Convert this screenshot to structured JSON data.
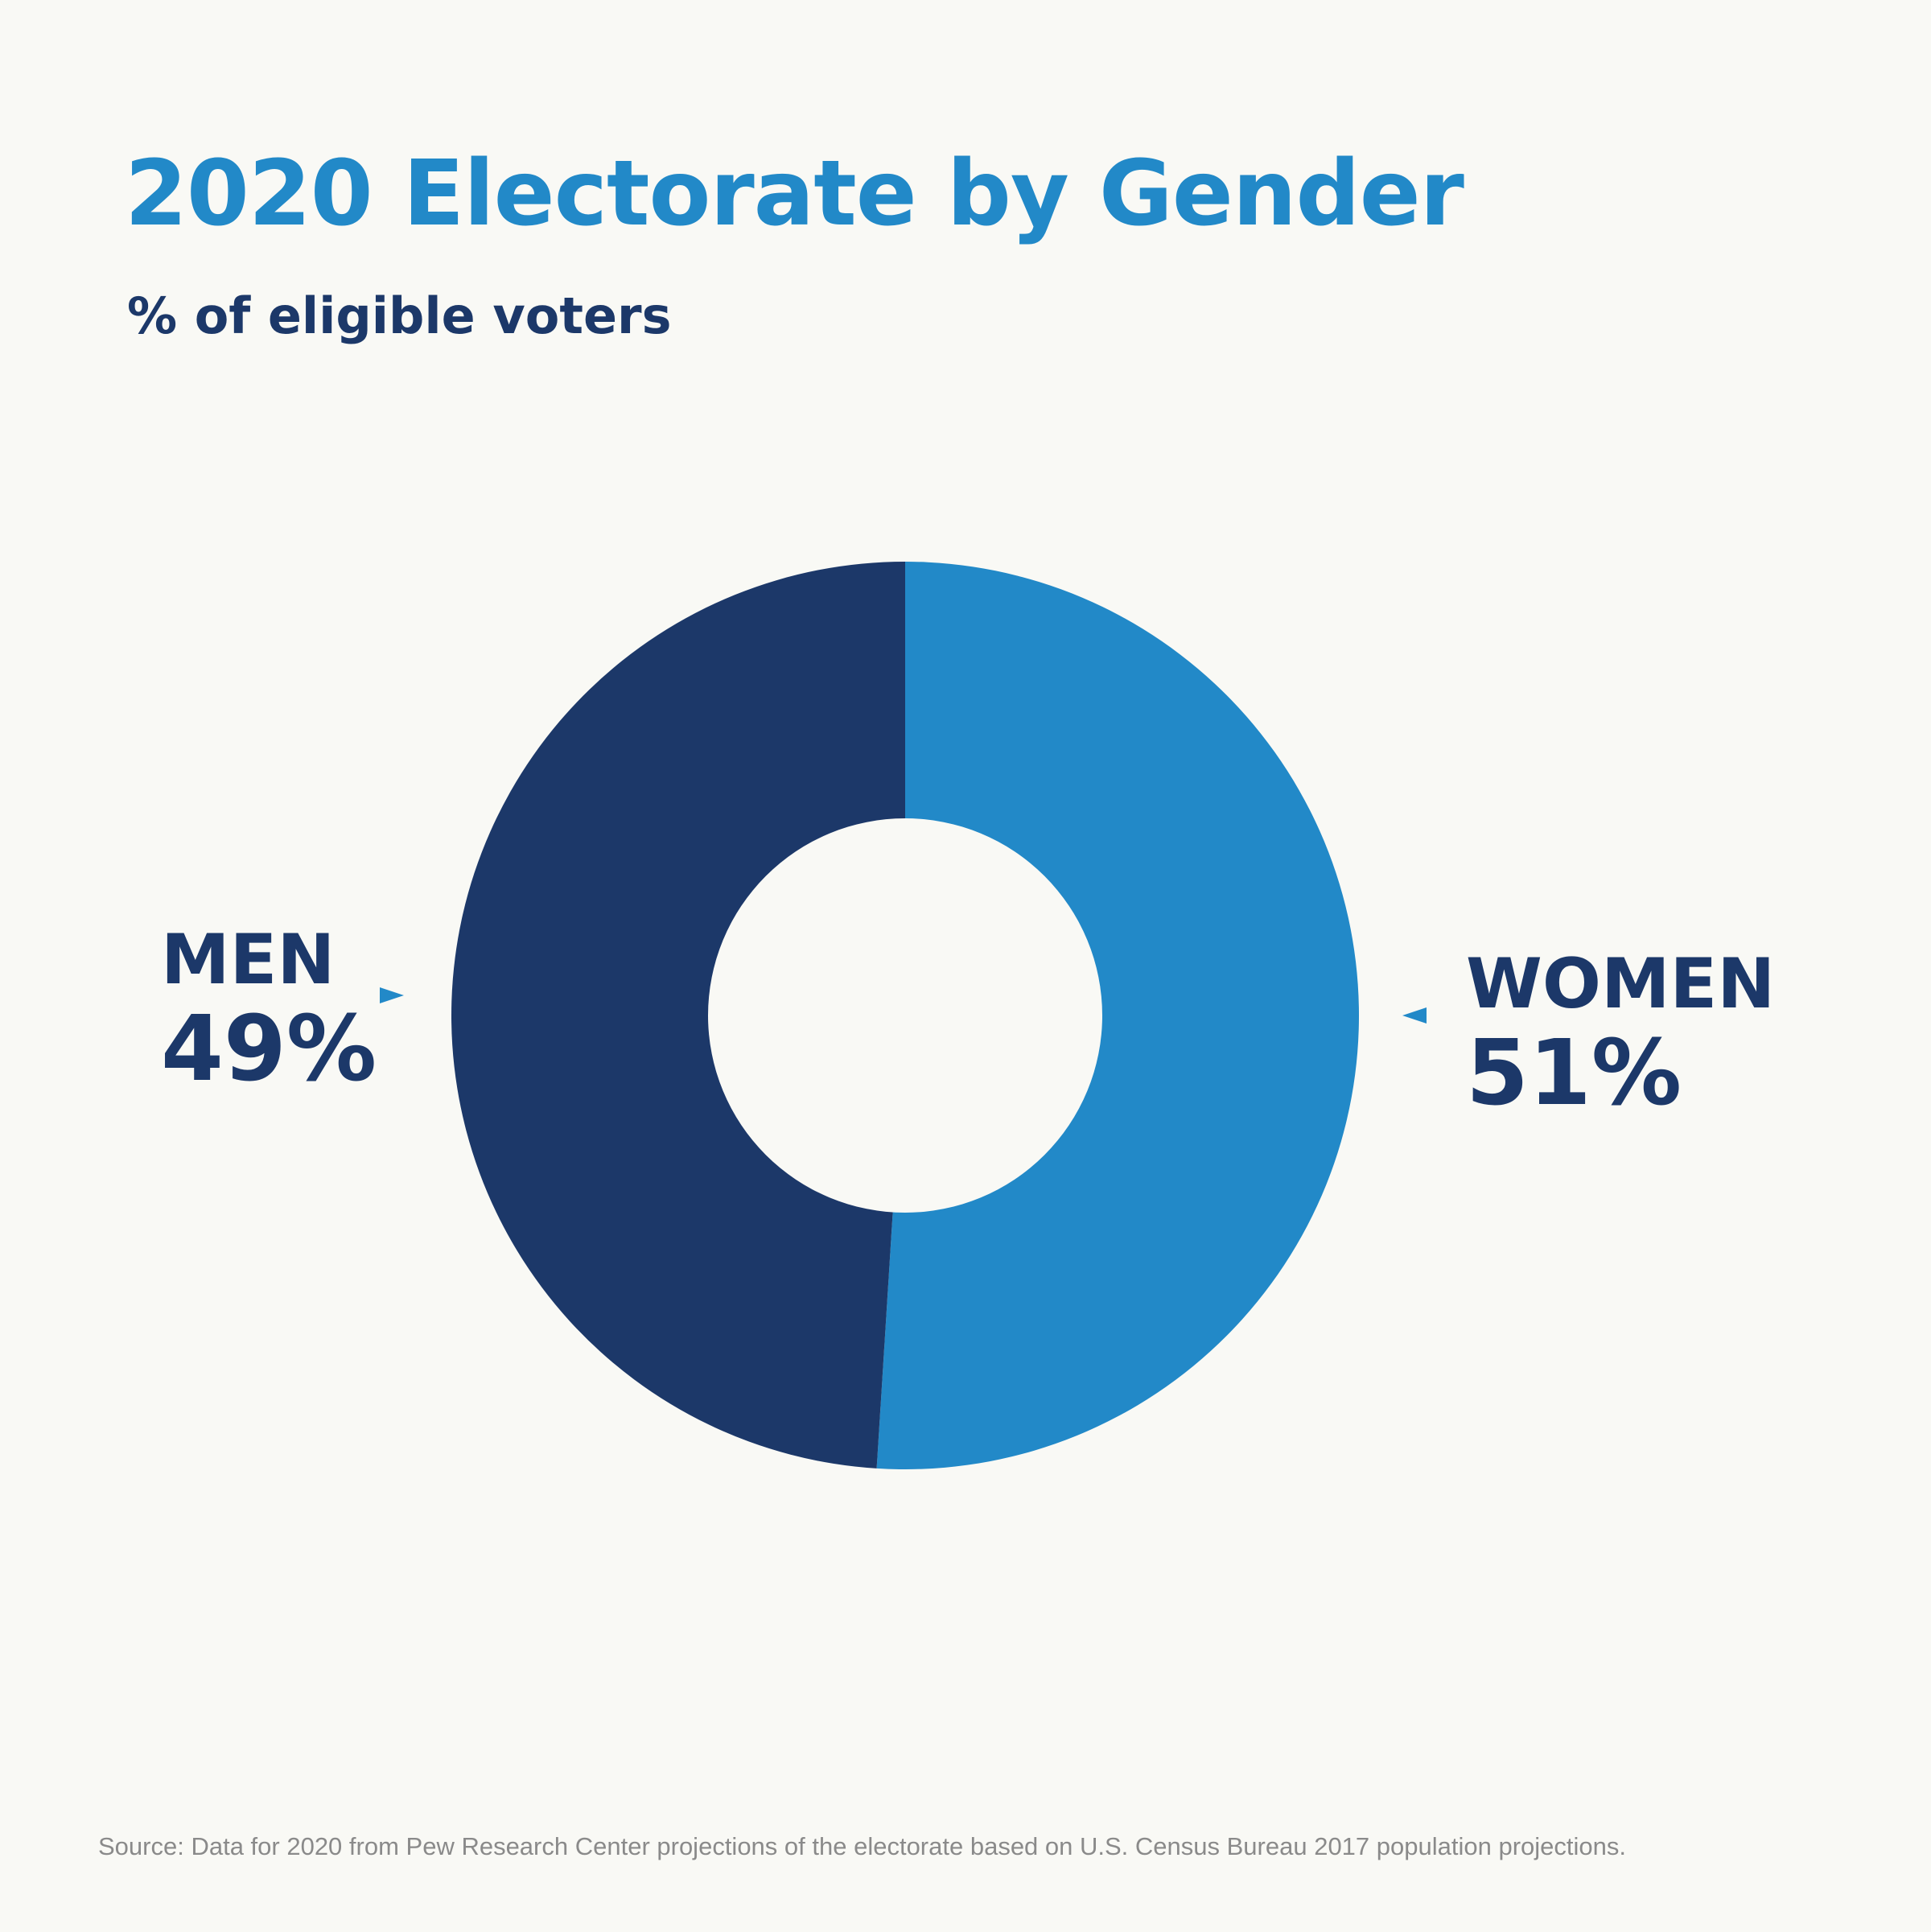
{
  "colors": {
    "background": "#f9f9f5",
    "title": "#2289c8",
    "subtitle": "#1c3869",
    "label": "#1c3869",
    "source": "#8a8a8a",
    "center_hole": "#f9f9f5"
  },
  "chart_data": {
    "type": "pie",
    "variant": "donut",
    "title": "2020 Electorate by Gender",
    "subtitle": "% of eligible voters",
    "unit": "%",
    "start_angle_degrees": 0,
    "direction": "clockwise",
    "slices": [
      {
        "label": "WOMEN",
        "value": 51,
        "value_label": "51%",
        "color": "#2289c8",
        "label_side": "right",
        "pointer_icon": "triangle-left-icon"
      },
      {
        "label": "MEN",
        "value": 49,
        "value_label": "49%",
        "color": "#1c3869",
        "label_side": "left",
        "pointer_icon": "triangle-right-icon"
      }
    ],
    "legend": "none"
  },
  "source": "Source: Data for 2020 from Pew Research Center projections of the electorate based on U.S. Census Bureau 2017 population projections."
}
